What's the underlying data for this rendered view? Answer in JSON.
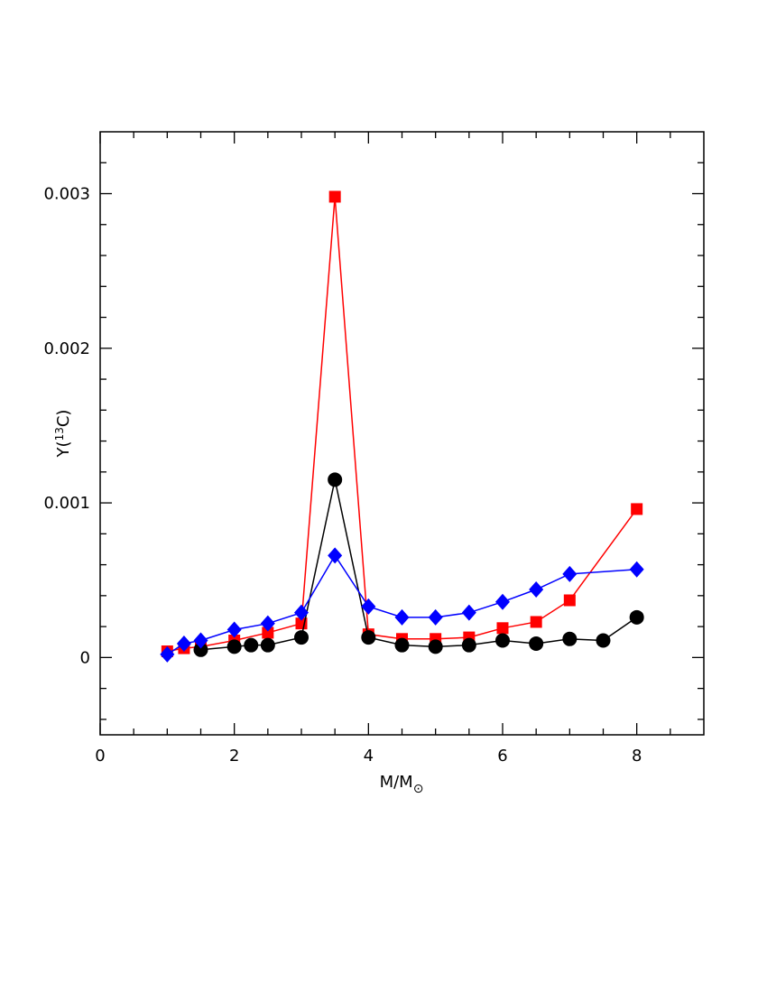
{
  "chart_data": {
    "type": "line",
    "xlabel": [
      "M/M",
      "⊙"
    ],
    "ylabel": [
      "Y(",
      "13",
      "C)"
    ],
    "xlim": [
      0,
      9
    ],
    "xticks": [
      0,
      2,
      4,
      6,
      8
    ],
    "xminorticks": [
      0.5,
      1,
      1.5,
      2.5,
      3,
      3.5,
      4.5,
      5,
      5.5,
      6.5,
      7,
      7.5,
      8.5
    ],
    "ylim": [
      -0.0005,
      0.0034
    ],
    "yticks": [
      0,
      0.001,
      0.002,
      0.003
    ],
    "yminorticks": [
      -0.0004,
      -0.0002,
      0.0002,
      0.0004,
      0.0006,
      0.0008,
      0.0012,
      0.0014,
      0.0016,
      0.0018,
      0.0022,
      0.0024,
      0.0026,
      0.0028,
      0.0032
    ],
    "series": [
      {
        "color": "#ff0000",
        "marker": "square",
        "x": [
          1,
          1.25,
          1.5,
          2,
          2.5,
          3,
          3.5,
          4,
          4.5,
          5,
          5.5,
          6,
          6.5,
          7,
          8
        ],
        "values": [
          4e-05,
          6e-05,
          7e-05,
          0.00011,
          0.00016,
          0.00022,
          0.00298,
          0.00015,
          0.00012,
          0.00012,
          0.00013,
          0.00019,
          0.00023,
          0.00037,
          0.00096
        ]
      },
      {
        "color": "#000000",
        "marker": "circle",
        "x": [
          1.5,
          2,
          2.25,
          2.5,
          3,
          3.5,
          4,
          4.5,
          5,
          5.5,
          6,
          6.5,
          7,
          7.5,
          8
        ],
        "values": [
          5e-05,
          7e-05,
          8e-05,
          8e-05,
          0.00013,
          0.00115,
          0.00013,
          8e-05,
          7e-05,
          8e-05,
          0.00011,
          9e-05,
          0.00012,
          0.00011,
          0.00026
        ]
      },
      {
        "color": "#0000ff",
        "marker": "diamond",
        "x": [
          1,
          1.25,
          1.5,
          2,
          2.5,
          3,
          3.5,
          4,
          4.5,
          5,
          5.5,
          6,
          6.5,
          7,
          8
        ],
        "values": [
          2e-05,
          9e-05,
          0.00011,
          0.00018,
          0.00022,
          0.00029,
          0.00066,
          0.00033,
          0.00026,
          0.00026,
          0.00029,
          0.00036,
          0.00044,
          0.00054,
          0.00057
        ]
      }
    ]
  }
}
